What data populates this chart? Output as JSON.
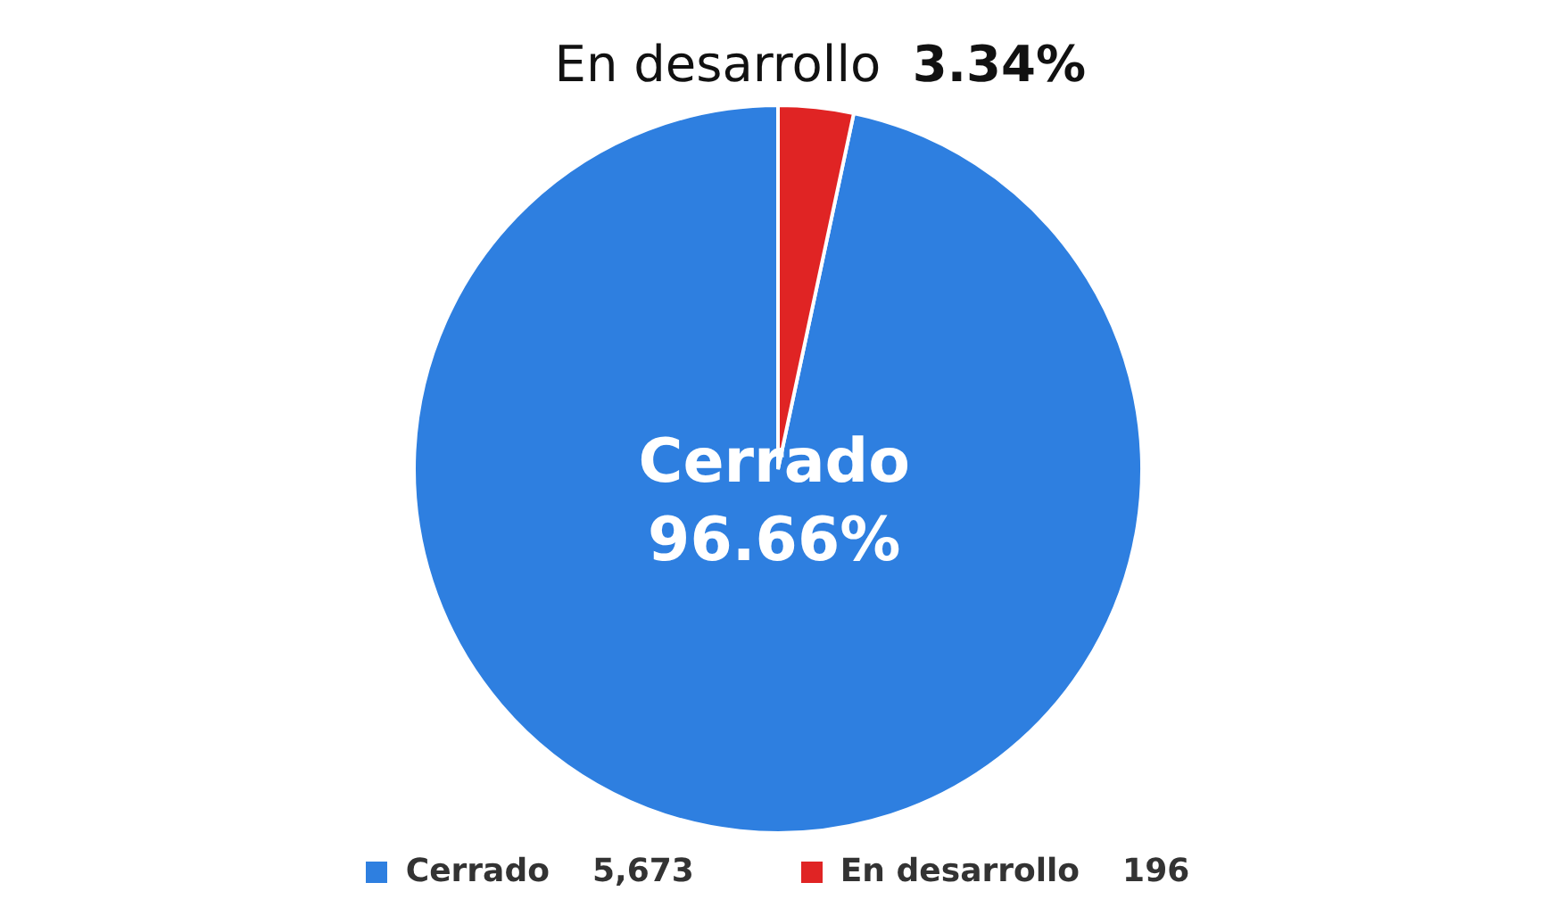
{
  "chart_data": {
    "type": "pie",
    "categories": [
      "Cerrado",
      "En desarrollo"
    ],
    "values": [
      96.66,
      3.34
    ],
    "colors": [
      "#2e7fe0",
      "#e02424"
    ],
    "value_labels": [
      "96.66%",
      "3.34%"
    ],
    "legend": "bottom",
    "annotations": [
      "5,673",
      "196"
    ]
  }
}
